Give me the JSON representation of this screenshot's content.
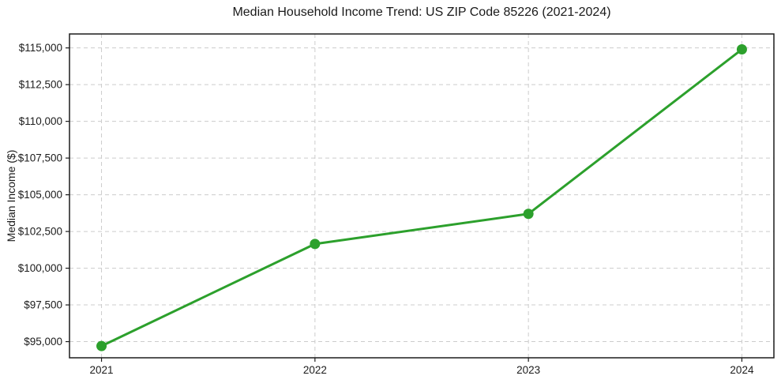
{
  "chart_data": {
    "type": "line",
    "title": "Median Household Income Trend: US ZIP Code 85226 (2021-2024)",
    "xlabel": "",
    "ylabel": "Median Income ($)",
    "x": [
      2021,
      2022,
      2023,
      2024
    ],
    "series": [
      {
        "name": "Median Household Income",
        "values": [
          94700,
          101650,
          103700,
          114900
        ]
      }
    ],
    "xticks": [
      {
        "value": 2021,
        "label": "2021"
      },
      {
        "value": 2022,
        "label": "2022"
      },
      {
        "value": 2023,
        "label": "2023"
      },
      {
        "value": 2024,
        "label": "2024"
      }
    ],
    "yticks": [
      {
        "value": 95000,
        "label": "$95,000"
      },
      {
        "value": 97500,
        "label": "$97,500"
      },
      {
        "value": 100000,
        "label": "$100,000"
      },
      {
        "value": 102500,
        "label": "$102,500"
      },
      {
        "value": 105000,
        "label": "$105,000"
      },
      {
        "value": 107500,
        "label": "$107,500"
      },
      {
        "value": 110000,
        "label": "$110,000"
      },
      {
        "value": 112500,
        "label": "$112,500"
      },
      {
        "value": 115000,
        "label": "$115,000"
      }
    ],
    "xlim": [
      2020.85,
      2024.15
    ],
    "ylim": [
      93900,
      115950
    ],
    "grid": true,
    "legend": "none",
    "line_color": "#2ca02c",
    "marker_color": "#2ca02c",
    "grid_color": "#cccccc",
    "axis_color": "#1c1c1c",
    "background": "#ffffff"
  }
}
